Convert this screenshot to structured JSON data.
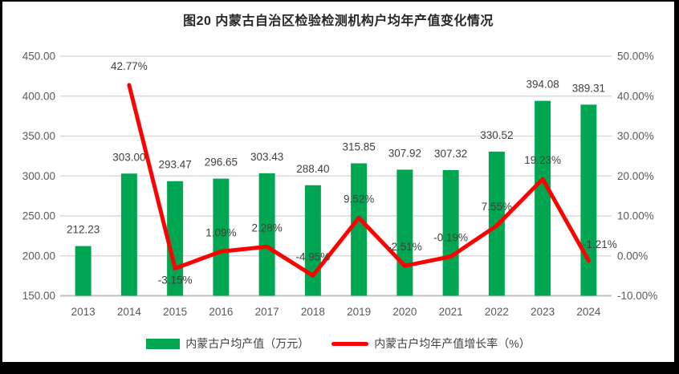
{
  "chart_data": {
    "type": "combo-bar-line",
    "title": "图20  内蒙古自治区检验检测机构户均年产值变化情况",
    "categories": [
      "2013",
      "2014",
      "2015",
      "2016",
      "2017",
      "2018",
      "2019",
      "2020",
      "2021",
      "2022",
      "2023",
      "2024"
    ],
    "series": [
      {
        "name": "内蒙古户均产值（万元）",
        "type": "bar",
        "axis": "left",
        "color": "#00A651",
        "values": [
          212.23,
          303.0,
          293.47,
          296.65,
          303.43,
          288.4,
          315.85,
          307.92,
          307.32,
          330.52,
          394.08,
          389.31
        ],
        "labels": [
          "212.23",
          "303.00",
          "293.47",
          "296.65",
          "303.43",
          "288.40",
          "315.85",
          "307.92",
          "307.32",
          "330.52",
          "394.08",
          "389.31"
        ]
      },
      {
        "name": "内蒙古户均年产值增长率（%）",
        "type": "line",
        "axis": "right",
        "color": "#FE0000",
        "values": [
          null,
          42.77,
          -3.15,
          1.09,
          2.28,
          -4.95,
          9.52,
          -2.51,
          -0.19,
          7.55,
          19.23,
          -1.21
        ],
        "labels": [
          null,
          "42.77%",
          "-3.15%",
          "1.09%",
          "2.28%",
          "-4.95%",
          "9.52%",
          "-2.51%",
          "-0.19%",
          "7.55%",
          "19.23%",
          "-1.21%"
        ],
        "label_positions": [
          null,
          "above",
          "below",
          "above",
          "above",
          "above",
          "above",
          "above",
          "above",
          "above",
          "above",
          "above-right"
        ]
      }
    ],
    "left_axis": {
      "min": 150,
      "max": 450,
      "step": 50,
      "ticks": [
        "450.00",
        "400.00",
        "350.00",
        "300.00",
        "250.00",
        "200.00",
        "150.00"
      ]
    },
    "right_axis": {
      "min": -10,
      "max": 50,
      "step": 10,
      "ticks": [
        "50.00%",
        "40.00%",
        "30.00%",
        "20.00%",
        "10.00%",
        "0.00%",
        "-10.00%"
      ]
    },
    "grid": true,
    "legend_position": "bottom"
  },
  "colors": {
    "bar": "#00A651",
    "line": "#FE0000",
    "gridline": "#D9D9D9",
    "axis_line": "#BFBFBF",
    "tick_text": "#595959",
    "data_label_text": "#404040",
    "title_text": "#262626",
    "frame": "#000000",
    "background": "#FFFFFF"
  }
}
